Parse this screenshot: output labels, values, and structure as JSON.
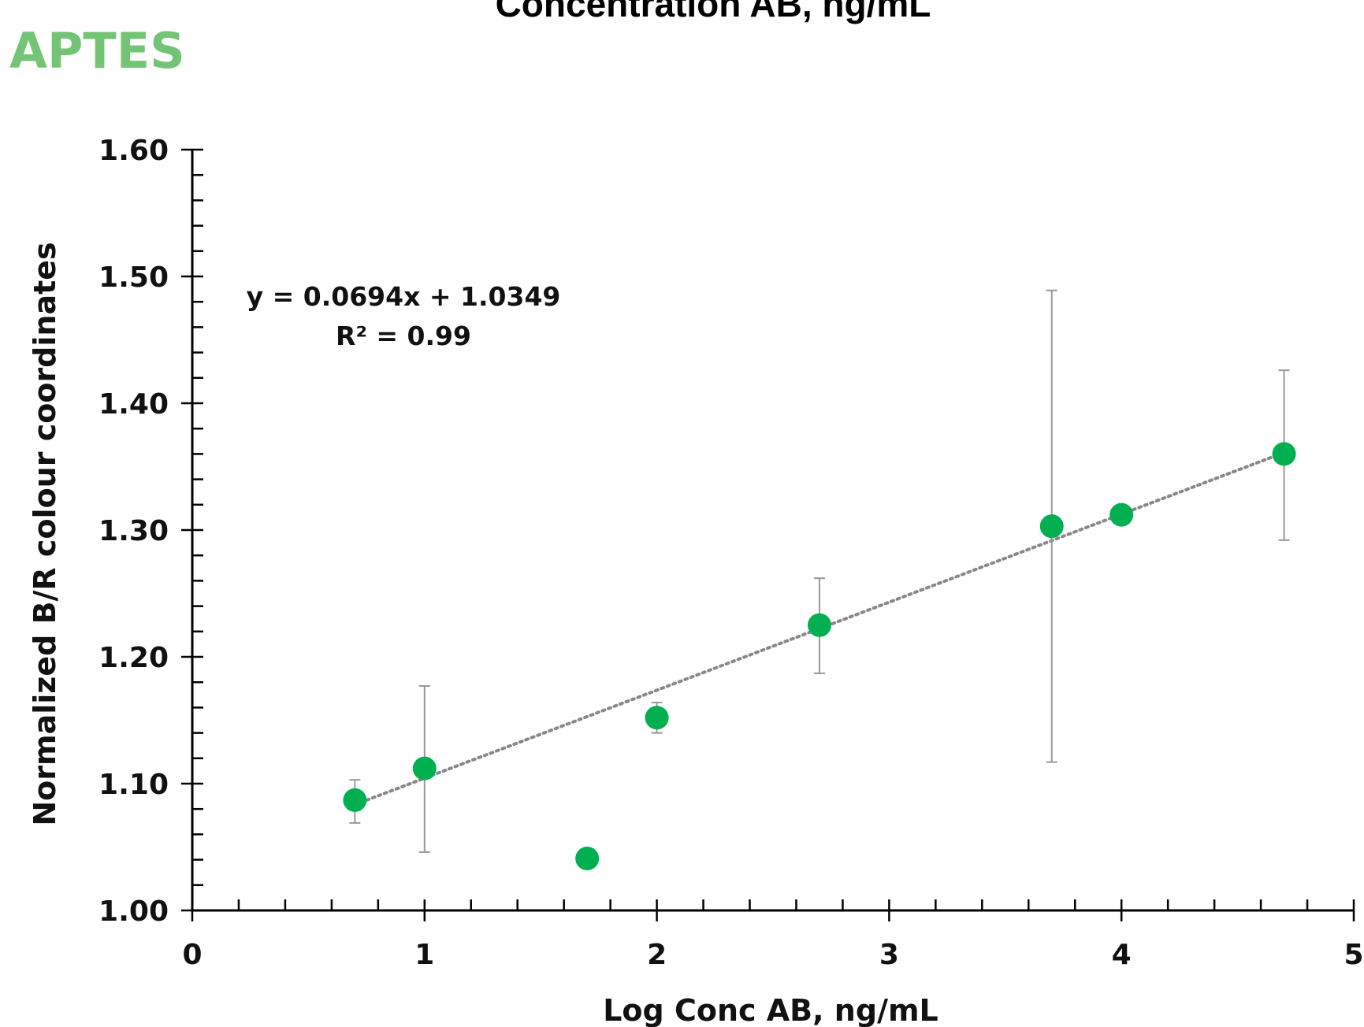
{
  "header": {
    "title": "Concentration AB, ng/mL"
  },
  "panel": {
    "label": "APTES",
    "label_color": "#74c476"
  },
  "chart_data": {
    "type": "scatter",
    "xlabel": "Log Conc AB, ng/mL",
    "ylabel": "Normalized B/R colour coordinates",
    "xlim": [
      0,
      5
    ],
    "ylim": [
      1.0,
      1.6
    ],
    "x_ticks": [
      0,
      1,
      2,
      3,
      4,
      5
    ],
    "x_tick_labels": [
      "0",
      "1",
      "2",
      "3",
      "4",
      "5"
    ],
    "y_ticks": [
      1.0,
      1.1,
      1.2,
      1.3,
      1.4,
      1.5,
      1.6
    ],
    "y_tick_labels": [
      "1.00",
      "1.10",
      "1.20",
      "1.30",
      "1.40",
      "1.50",
      "1.60"
    ],
    "grid": false,
    "marker_color": "#00b050",
    "points": [
      {
        "x": 0.7,
        "y": 1.087,
        "err_low": 1.069,
        "err_high": 1.103
      },
      {
        "x": 1.0,
        "y": 1.112,
        "err_low": 1.046,
        "err_high": 1.177
      },
      {
        "x": 1.7,
        "y": 1.041
      },
      {
        "x": 2.0,
        "y": 1.152,
        "err_low": 1.14,
        "err_high": 1.164
      },
      {
        "x": 2.7,
        "y": 1.225,
        "err_low": 1.187,
        "err_high": 1.262
      },
      {
        "x": 3.7,
        "y": 1.303,
        "err_low": 1.117,
        "err_high": 1.489
      },
      {
        "x": 4.0,
        "y": 1.312
      },
      {
        "x": 4.7,
        "y": 1.36,
        "err_low": 1.292,
        "err_high": 1.426
      }
    ],
    "trendline": {
      "slope": 0.0694,
      "intercept": 1.0349,
      "x_range": [
        0.7,
        4.7
      ],
      "style": "dotted",
      "color": "#888888"
    },
    "annotations": {
      "equation": "y = 0.0694x + 1.0349",
      "r2": "R² = 0.99"
    }
  }
}
